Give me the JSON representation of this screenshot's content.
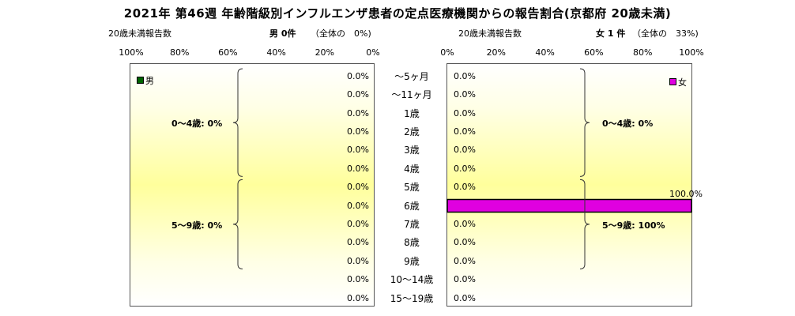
{
  "chart_data": {
    "type": "bar",
    "title": "2021年 第46週 年齢階級別インフルエンザ患者の定点医療機関からの報告割合(京都府 20歳未満)",
    "categories": [
      "～5ヶ月",
      "～11ヶ月",
      "1歳",
      "2歳",
      "3歳",
      "4歳",
      "5歳",
      "6歳",
      "7歳",
      "8歳",
      "9歳",
      "10～14歳",
      "15～19歳"
    ],
    "left": {
      "header_label": "20歳未満報告数",
      "sex_label": "男 0件",
      "share_label": "（全体の　0%)",
      "ticks": [
        "100%",
        "80%",
        "60%",
        "40%",
        "20%",
        "0%"
      ],
      "legend": "男",
      "color": "#006400",
      "values": [
        0,
        0,
        0,
        0,
        0,
        0,
        0,
        0,
        0,
        0,
        0,
        0,
        0
      ],
      "value_labels": [
        "0.0%",
        "0.0%",
        "0.0%",
        "0.0%",
        "0.0%",
        "0.0%",
        "0.0%",
        "0.0%",
        "0.0%",
        "0.0%",
        "0.0%",
        "0.0%",
        "0.0%"
      ],
      "groups": [
        {
          "label": "0～4歳: 0%",
          "from": 0,
          "to": 5
        },
        {
          "label": "5～9歳: 0%",
          "from": 6,
          "to": 10
        }
      ]
    },
    "right": {
      "header_label": "20歳未満報告数",
      "sex_label": "女 1 件",
      "share_label": "（全体の　33%)",
      "ticks": [
        "0%",
        "20%",
        "40%",
        "60%",
        "80%",
        "100%"
      ],
      "legend": "女",
      "color": "#e000e0",
      "values": [
        0,
        0,
        0,
        0,
        0,
        0,
        0,
        100,
        0,
        0,
        0,
        0,
        0
      ],
      "value_labels": [
        "0.0%",
        "0.0%",
        "0.0%",
        "0.0%",
        "0.0%",
        "0.0%",
        "0.0%",
        "100.0%",
        "0.0%",
        "0.0%",
        "0.0%",
        "0.0%",
        "0.0%"
      ],
      "groups": [
        {
          "label": "0～4歳: 0%",
          "from": 0,
          "to": 5
        },
        {
          "label": "5～9歳: 100%",
          "from": 6,
          "to": 10
        }
      ]
    },
    "xlim": [
      0,
      100
    ]
  }
}
